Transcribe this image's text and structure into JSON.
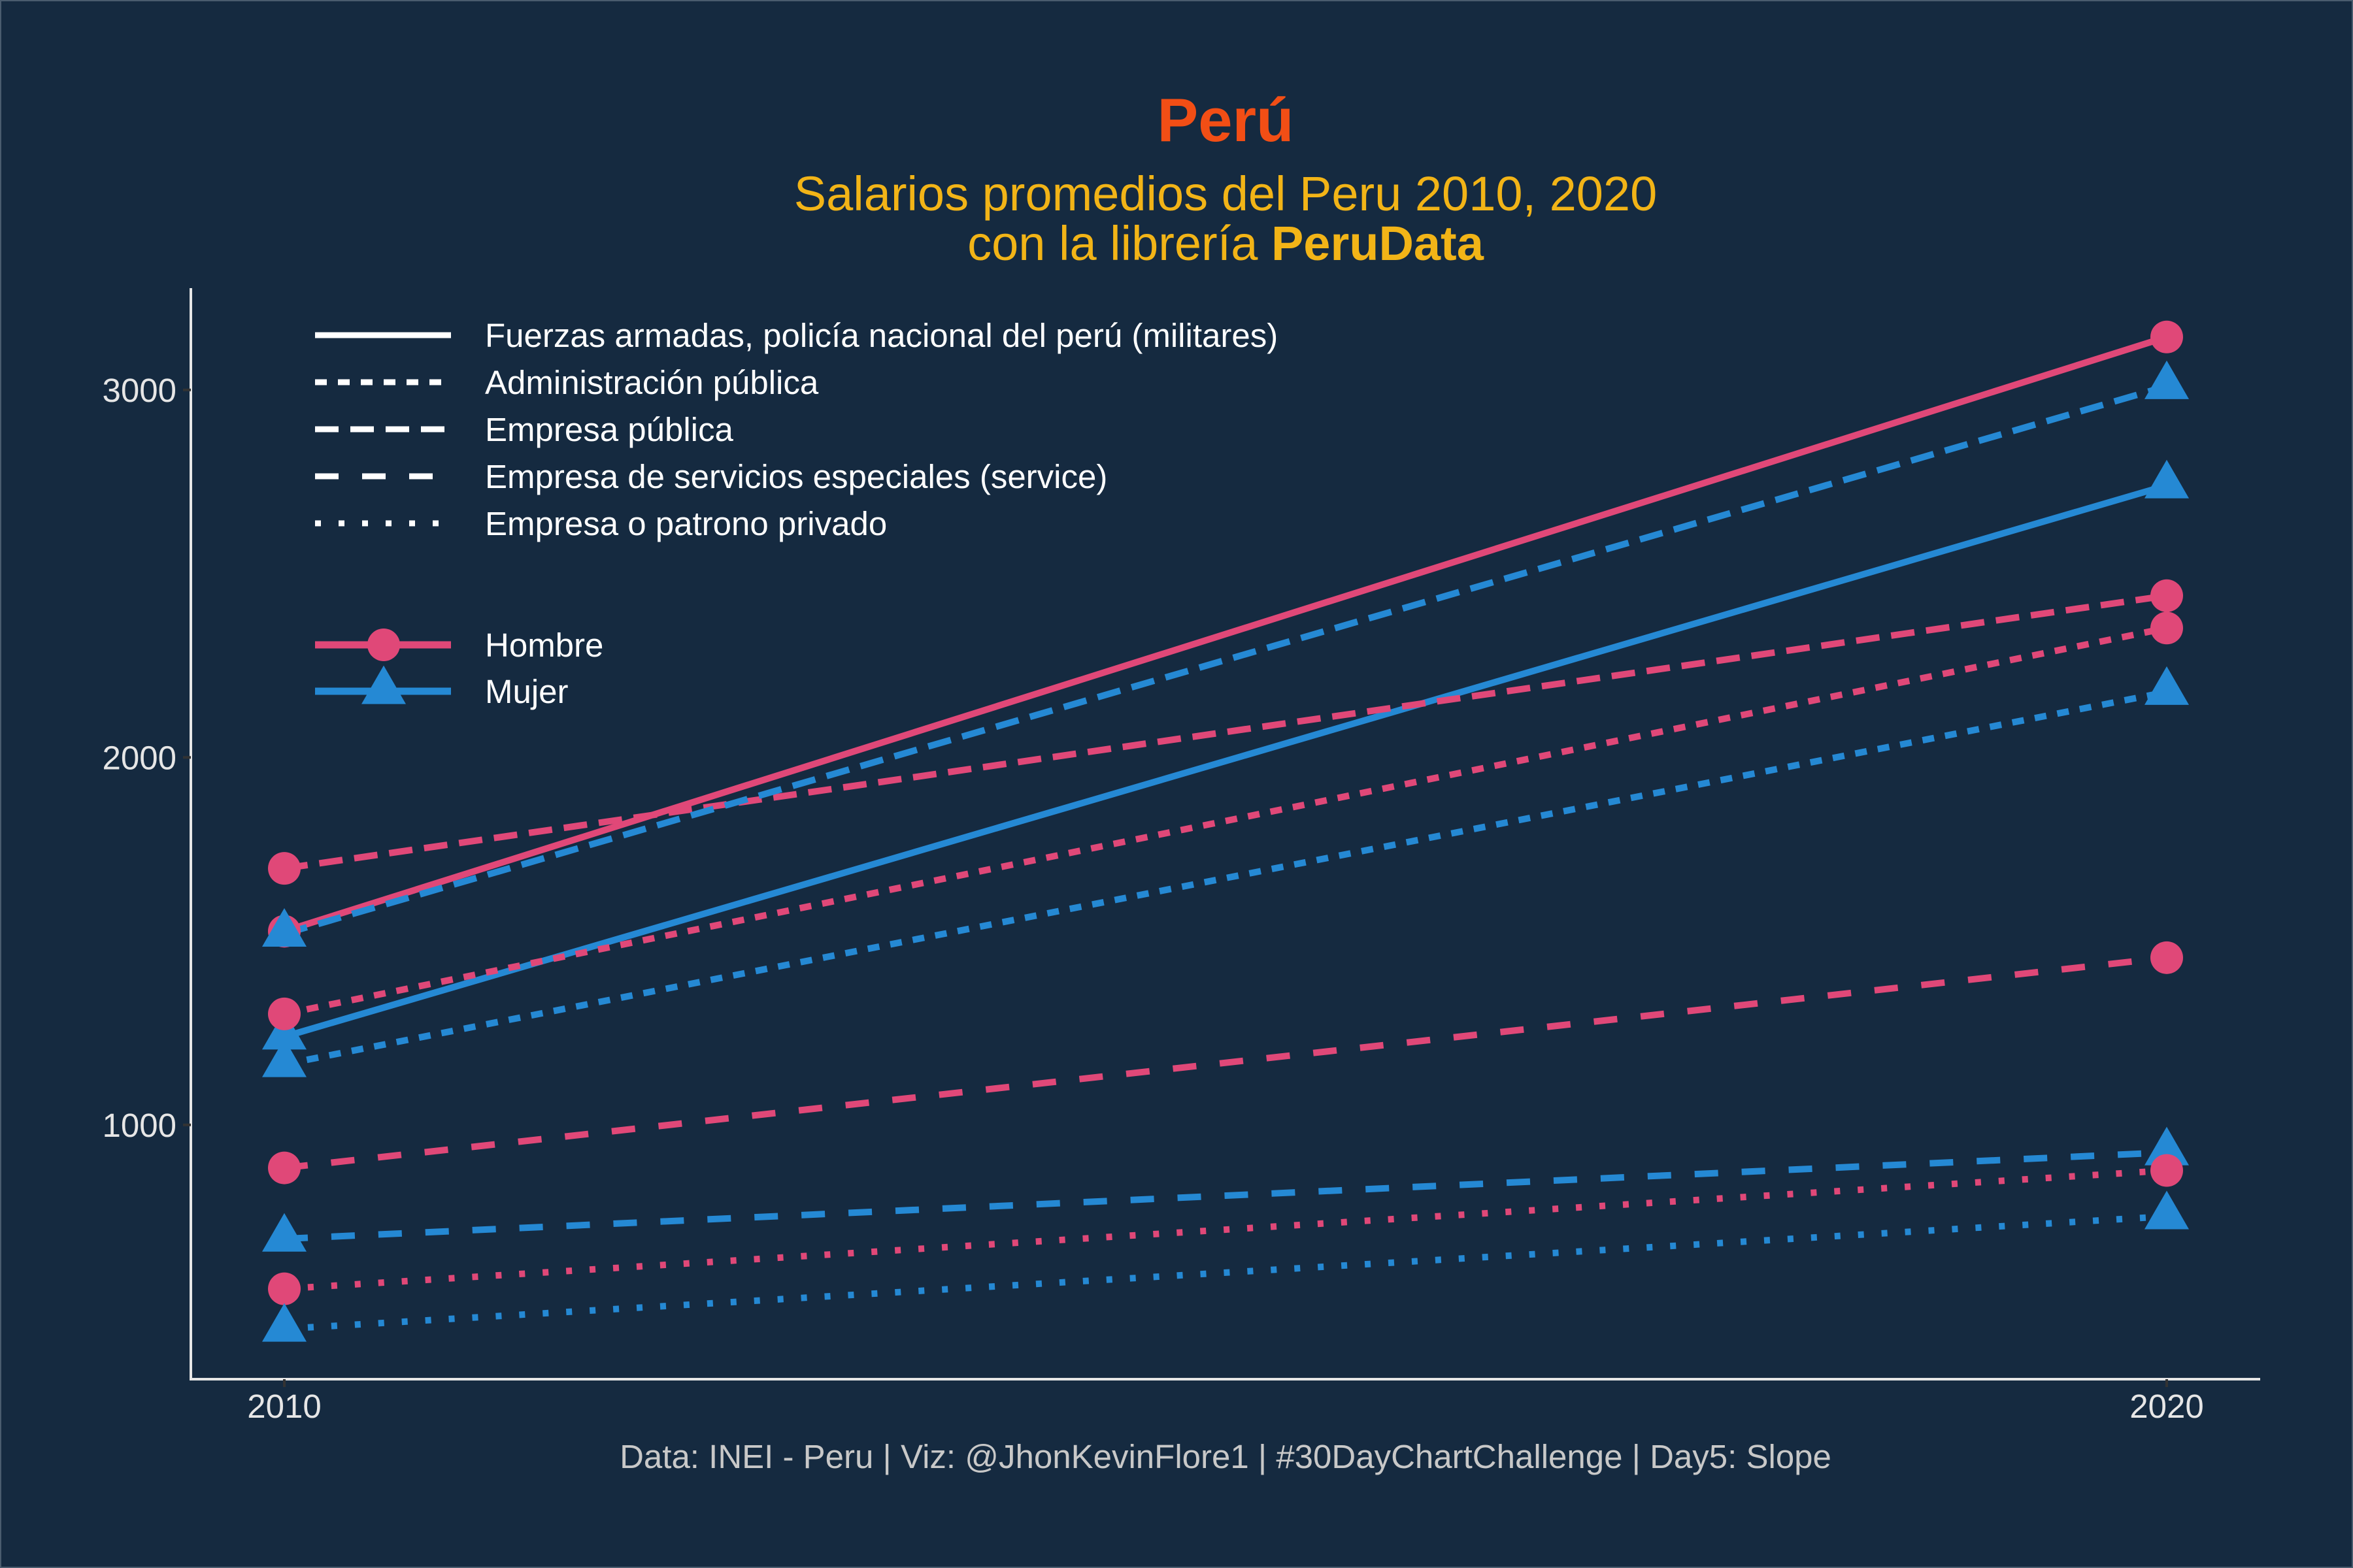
{
  "colors": {
    "background": "#152A40",
    "title": "#F24E15",
    "subtitle": "#F2B417",
    "hombre": "#E04878",
    "mujer": "#2589D4",
    "axis": "#E6E6E6",
    "legend_text": "#FFFFFF",
    "caption": "#C8C8C8"
  },
  "chart_data": {
    "type": "line",
    "subtype": "slope",
    "title": "Perú",
    "subtitle_line1": "Salarios promedios del Peru 2010, 2020",
    "subtitle_line2_prefix": "con la librería ",
    "subtitle_line2_bold": "PeruData",
    "caption": "Data: INEI - Peru | Viz: @JhonKevinFlore1 | #30DayChartChallenge | Day5: Slope",
    "xlabel": "",
    "ylabel": "",
    "x": [
      "2010",
      "2020"
    ],
    "ylim": [
      308,
      3277
    ],
    "yticks": [
      1000,
      2000,
      3000
    ],
    "grid": false,
    "legend_position": "top-left",
    "linetype_legend": [
      {
        "label": "Fuerzas armadas, policía nacional del perú (militares)",
        "linetype": "solid"
      },
      {
        "label": "Administración pública",
        "linetype": "dotted"
      },
      {
        "label": "Empresa pública",
        "linetype": "dashed"
      },
      {
        "label": "Empresa de servicios especiales (service)",
        "linetype": "longdash"
      },
      {
        "label": "Empresa o patrono privado",
        "linetype": "dotdot"
      }
    ],
    "sex_legend": [
      {
        "label": "Hombre",
        "shape": "circle",
        "color_key": "hombre"
      },
      {
        "label": "Mujer",
        "shape": "triangle",
        "color_key": "mujer"
      }
    ],
    "series": [
      {
        "name": "Fuerzas armadas - Hombre",
        "sector": 0,
        "sex": "hombre",
        "values": [
          1527,
          3144
        ]
      },
      {
        "name": "Fuerzas armadas - Mujer",
        "sector": 0,
        "sex": "mujer",
        "values": [
          1240,
          2740
        ]
      },
      {
        "name": "Administración pública - Hombre",
        "sector": 1,
        "sex": "hombre",
        "values": [
          1302,
          2352
        ]
      },
      {
        "name": "Administración pública - Mujer",
        "sector": 1,
        "sex": "mujer",
        "values": [
          1165,
          2178
        ]
      },
      {
        "name": "Empresa pública - Hombre",
        "sector": 2,
        "sex": "hombre",
        "values": [
          1698,
          2440
        ]
      },
      {
        "name": "Empresa pública - Mujer",
        "sector": 2,
        "sex": "mujer",
        "values": [
          1520,
          3010
        ]
      },
      {
        "name": "Empresa de servicios especiales - Hombre",
        "sector": 3,
        "sex": "hombre",
        "values": [
          883,
          1455
        ]
      },
      {
        "name": "Empresa de servicios especiales - Mujer",
        "sector": 3,
        "sex": "mujer",
        "values": [
          690,
          925
        ]
      },
      {
        "name": "Empresa o patrono privado - Hombre",
        "sector": 4,
        "sex": "hombre",
        "values": [
          554,
          876
        ]
      },
      {
        "name": "Empresa o patrono privado - Mujer",
        "sector": 4,
        "sex": "mujer",
        "values": [
          445,
          751
        ]
      }
    ]
  }
}
